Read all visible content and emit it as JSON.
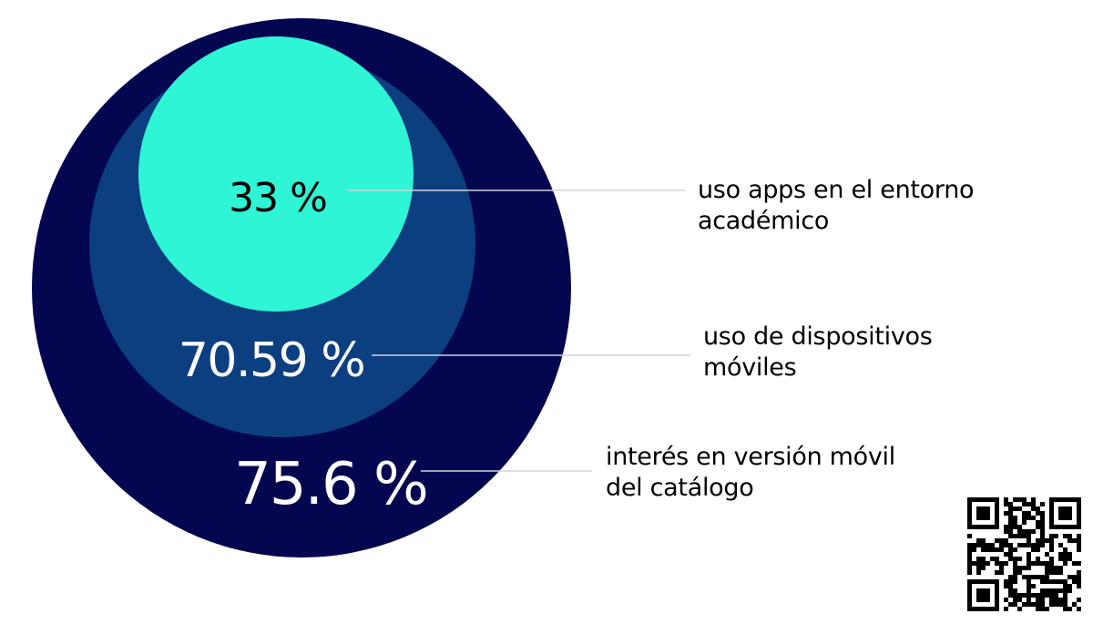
{
  "chart_data": {
    "type": "nested-circle",
    "series": [
      {
        "name": "interés en versión móvil del catálogo",
        "value": 75.6,
        "value_label": "75.6 %",
        "color": "#04064F",
        "text_color": "#FFFFFF"
      },
      {
        "name": "uso de dispositivos móviles",
        "value": 70.59,
        "value_label": "70.59 %",
        "color": "#0B3F80",
        "text_color": "#FFFFFF"
      },
      {
        "name": "uso apps en el entorno académico",
        "value": 33,
        "value_label": "33 %",
        "color": "#2EF5D6",
        "text_color": "#000000"
      }
    ]
  },
  "labels": {
    "apps": "uso apps en el entorno académico",
    "devices": "uso de dispositivos móviles",
    "interest": "interés en versión móvil del catálogo"
  },
  "qr_code": {
    "icon": "qr-code-icon"
  }
}
